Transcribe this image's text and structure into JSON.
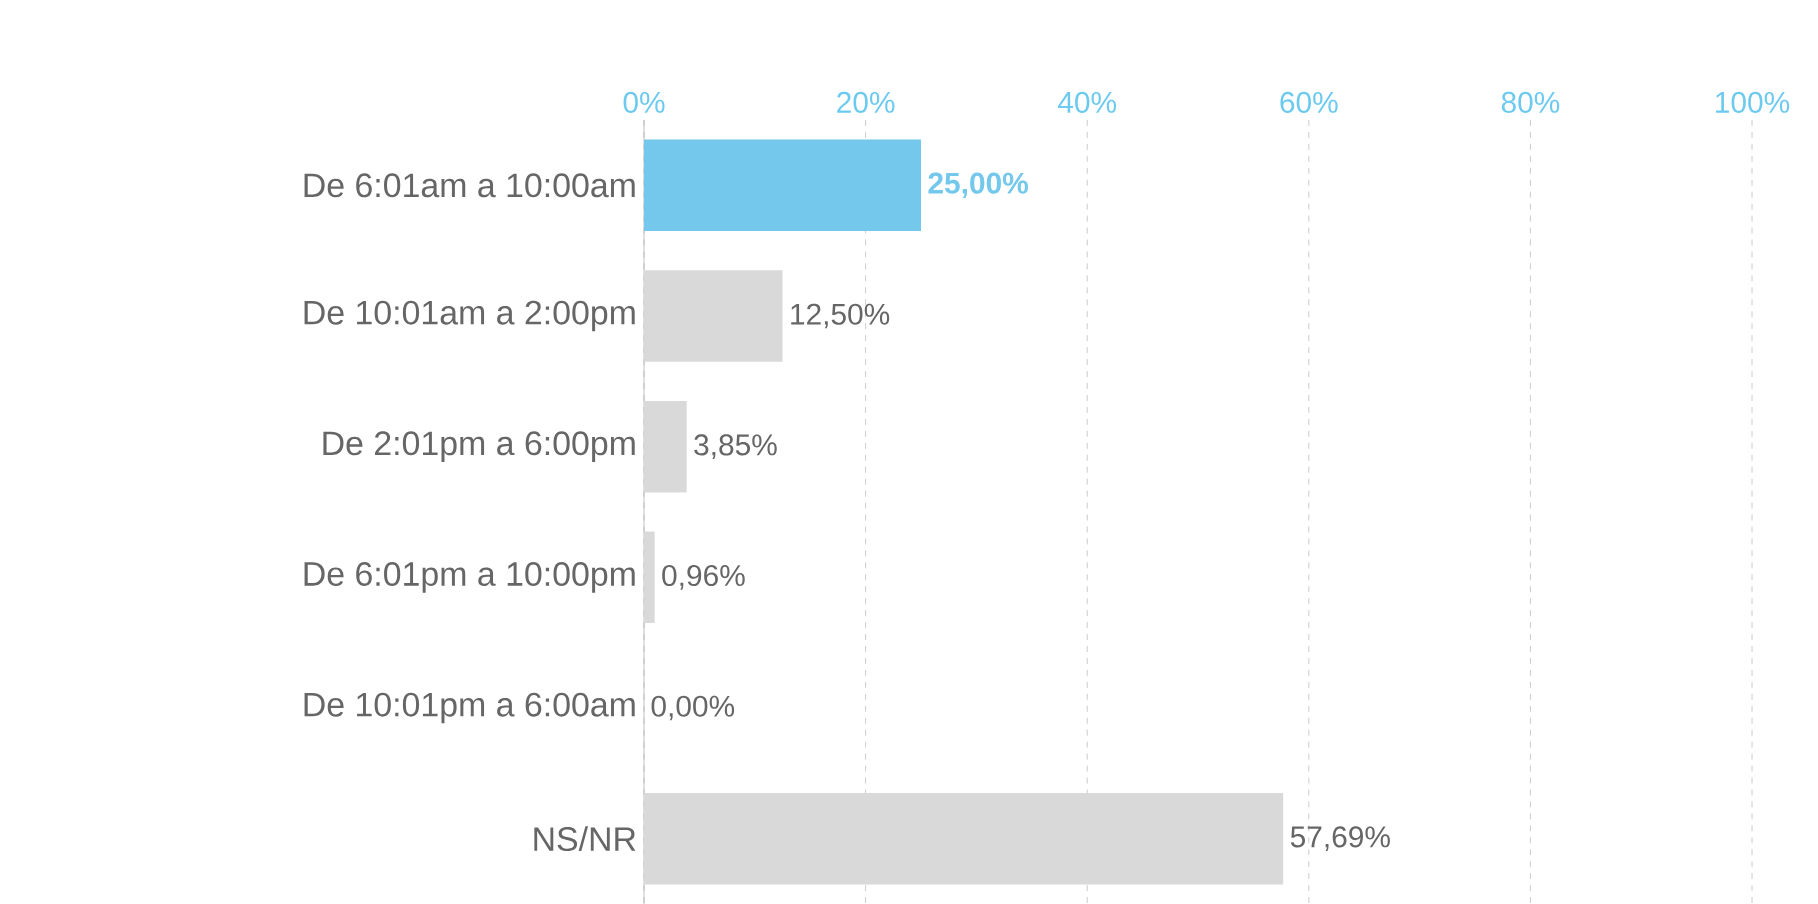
{
  "chart_data": {
    "type": "bar",
    "orientation": "horizontal",
    "categories": [
      "De 6:01am a 10:00am",
      "De 10:01am a 2:00pm",
      "De 2:01pm a 6:00pm",
      "De 6:01pm a 10:00pm",
      "De 10:01pm a 6:00am",
      "NS/NR"
    ],
    "values": [
      25.0,
      12.5,
      3.85,
      0.96,
      0.0,
      57.69
    ],
    "colors": [
      "#73c8ec",
      "#d9d9d9",
      "#d9d9d9",
      "#d9d9d9",
      "#d9d9d9",
      "#d9d9d9"
    ],
    "value_labels": [
      "**25,00%**",
      "12,50%",
      "3,85%",
      "0,96%",
      "0,00%",
      "57,69%"
    ],
    "xlim": [
      0,
      100
    ],
    "xticks": [
      {
        "value": 0,
        "label": "0%"
      },
      {
        "value": 20,
        "label": "20%"
      },
      {
        "value": 40,
        "label": "40%"
      },
      {
        "value": 60,
        "label": "60%"
      },
      {
        "value": 80,
        "label": "80%"
      },
      {
        "value": 100,
        "label": "100%"
      }
    ],
    "grid": "x"
  }
}
